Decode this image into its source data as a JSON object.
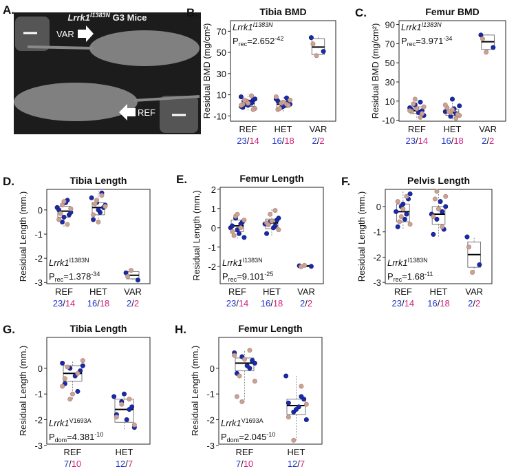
{
  "chart_data": [
    {
      "type": "image",
      "letter": "A.",
      "gene": "Lrrk1",
      "allele": "I1383N",
      "title_rest": " G3 Mice",
      "labels": [
        "VAR",
        "REF"
      ]
    },
    {
      "type": "box",
      "letter": "B.",
      "title": "Tibia BMD",
      "ylabel": "Residual BMD (mg/cm²)",
      "ylim": [
        -15,
        80
      ],
      "yticks": [
        -10,
        10,
        30,
        50,
        70
      ],
      "count_sep": "/",
      "count_colors": [
        "#2233cc",
        "#d0207f"
      ],
      "point_colors": [
        "#1b2aa8",
        "#c8a396"
      ],
      "annotation_corner": "top-left",
      "annotation": {
        "gene": "Lrrk1",
        "allele": "I1383N",
        "p": "P",
        "p_sub": "rec",
        "p_eq": "=2.652",
        "p_exp": "-42"
      },
      "groups": [
        {
          "name": "REF",
          "n": [
            23,
            14
          ],
          "whisker_low": -6,
          "q1": -1,
          "median": 2,
          "q3": 5,
          "whisker_high": 11,
          "points": [
            [
              8,
              5,
              3,
              1,
              -2,
              6,
              2,
              0,
              4,
              -1
            ],
            [
              4,
              1,
              -3,
              9,
              2,
              5,
              0,
              -4
            ]
          ]
        },
        {
          "name": "HET",
          "n": [
            16,
            18
          ],
          "whisker_low": -6,
          "q1": -2,
          "median": 1,
          "q3": 4,
          "whisker_high": 9,
          "points": [
            [
              6,
              3,
              0,
              -2,
              4,
              1,
              7,
              -1
            ],
            [
              2,
              -4,
              5,
              1,
              3,
              -3,
              8,
              0
            ]
          ]
        },
        {
          "name": "VAR",
          "n": [
            2,
            2
          ],
          "whisker_low": 46,
          "q1": 48,
          "median": 55,
          "q3": 63,
          "whisker_high": 66,
          "points": [
            [
              64,
              51
            ],
            [
              47,
              58
            ]
          ]
        }
      ]
    },
    {
      "type": "box",
      "letter": "C.",
      "title": "Femur BMD",
      "ylabel": "Residual BMD (mg/cm²)",
      "ylim": [
        -11,
        94
      ],
      "yticks": [
        -10,
        10,
        30,
        50,
        70,
        90
      ],
      "count_sep": "/",
      "count_colors": [
        "#2233cc",
        "#d0207f"
      ],
      "point_colors": [
        "#1b2aa8",
        "#c8a396"
      ],
      "annotation_corner": "top-left",
      "annotation": {
        "gene": "Lrrk1",
        "allele": "I1383N",
        "p": "P",
        "p_sub": "rec",
        "p_eq": "=3.971",
        "p_exp": "-34"
      },
      "groups": [
        {
          "name": "REF",
          "n": [
            23,
            14
          ],
          "whisker_low": -9,
          "q1": -3,
          "median": 0,
          "q3": 4,
          "whisker_high": 13,
          "points": [
            [
              3,
              0,
              -2,
              6,
              1,
              -5,
              9,
              2
            ],
            [
              12,
              -1,
              4,
              -7,
              2,
              7,
              0,
              -3
            ]
          ]
        },
        {
          "name": "HET",
          "n": [
            16,
            18
          ],
          "whisker_low": -9,
          "q1": -5,
          "median": -2,
          "q3": 1,
          "whisker_high": 12,
          "points": [
            [
              -1,
              -4,
              2,
              -6,
              0,
              5,
              -3,
              12
            ],
            [
              -2,
              3,
              -5,
              -8,
              1,
              -1,
              6,
              -4
            ]
          ]
        },
        {
          "name": "VAR",
          "n": [
            2,
            2
          ],
          "whisker_low": 60,
          "q1": 64,
          "median": 72,
          "q3": 79,
          "whisker_high": 80,
          "points": [
            [
              79,
              66
            ],
            [
              61,
              75
            ]
          ]
        }
      ]
    },
    {
      "type": "box",
      "letter": "D.",
      "title": "Tibia Length",
      "ylabel": "Residual Length (mm.)",
      "ylim": [
        -3.05,
        0.85
      ],
      "yticks": [
        0,
        -1,
        -2,
        -3
      ],
      "count_sep": "/",
      "count_colors": [
        "#2233cc",
        "#d0207f"
      ],
      "point_colors": [
        "#1b2aa8",
        "#c8a396"
      ],
      "annotation_corner": "bottom-left",
      "annotation": {
        "gene": "Lrrk1",
        "allele": "I1383N",
        "p": "P",
        "p_sub": "rec",
        "p_eq": "=1.378",
        "p_exp": "-34"
      },
      "groups": [
        {
          "name": "REF",
          "n": [
            23,
            14
          ],
          "whisker_low": -0.7,
          "q1": -0.3,
          "median": -0.05,
          "q3": 0.15,
          "whisker_high": 0.5,
          "points": [
            [
              0.1,
              -0.2,
              0.3,
              -0.5,
              0.0,
              -0.1,
              0.4,
              -0.3
            ],
            [
              0.2,
              -0.4,
              0.05,
              -0.6,
              0.35,
              -0.15
            ]
          ]
        },
        {
          "name": "HET",
          "n": [
            16,
            18
          ],
          "whisker_low": -0.6,
          "q1": -0.2,
          "median": 0.1,
          "q3": 0.3,
          "whisker_high": 0.8,
          "points": [
            [
              0.5,
              0.1,
              -0.1,
              0.3,
              -0.4,
              0.2,
              0.7,
              0.0
            ],
            [
              0.4,
              -0.2,
              0.15,
              0.6,
              -0.5,
              0.25
            ]
          ]
        },
        {
          "name": "VAR",
          "n": [
            2,
            2
          ],
          "whisker_low": -2.95,
          "q1": -2.85,
          "median": -2.7,
          "q3": -2.55,
          "whisker_high": -2.5,
          "points": [
            [
              -2.6,
              -2.9
            ],
            [
              -2.5,
              -2.75
            ]
          ]
        }
      ]
    },
    {
      "type": "box",
      "letter": "E.",
      "title": "Femur Length",
      "ylabel": "Residual Length (mm.)",
      "ylim": [
        -2.9,
        2.1
      ],
      "yticks": [
        2,
        1,
        0,
        -1,
        -2
      ],
      "count_sep": "/",
      "count_colors": [
        "#2233cc",
        "#d0207f"
      ],
      "point_colors": [
        "#1b2aa8",
        "#c8a396"
      ],
      "annotation_corner": "bottom-left",
      "annotation": {
        "gene": "Lrrk1",
        "allele": "I1383N",
        "p": "P",
        "p_sub": "rec",
        "p_eq": "=9.101",
        "p_exp": "-25"
      },
      "groups": [
        {
          "name": "REF",
          "n": [
            23,
            14
          ],
          "whisker_low": -0.6,
          "q1": -0.2,
          "median": 0.1,
          "q3": 0.4,
          "whisker_high": 0.8,
          "points": [
            [
              0.0,
              0.3,
              -0.3,
              0.5,
              0.1,
              -0.5,
              0.2,
              -0.1
            ],
            [
              0.6,
              -0.2,
              0.4,
              0.0,
              0.7,
              -0.4
            ]
          ]
        },
        {
          "name": "HET",
          "n": [
            16,
            18
          ],
          "whisker_low": -0.4,
          "q1": -0.05,
          "median": 0.25,
          "q3": 0.45,
          "whisker_high": 1.0,
          "points": [
            [
              0.2,
              0.4,
              0.0,
              0.3,
              -0.3,
              0.5,
              0.1
            ],
            [
              0.7,
              0.25,
              -0.1,
              0.9,
              0.35,
              0.15
            ]
          ]
        },
        {
          "name": "VAR",
          "n": [
            2,
            2
          ],
          "whisker_low": -2.05,
          "q1": -2.02,
          "median": -1.98,
          "q3": -1.95,
          "whisker_high": -1.93,
          "points": [
            [
              -1.97,
              -2.0
            ],
            [
              -1.95,
              -2.02
            ]
          ]
        }
      ]
    },
    {
      "type": "box",
      "letter": "F.",
      "title": "Pelvis Length",
      "ylabel": "Residual Length (mm.)",
      "ylim": [
        -3.05,
        0.68
      ],
      "yticks": [
        0,
        -1,
        -2,
        -3
      ],
      "count_sep": "/",
      "count_colors": [
        "#2233cc",
        "#d0207f"
      ],
      "point_colors": [
        "#1b2aa8",
        "#c8a396"
      ],
      "annotation_corner": "bottom-left",
      "annotation": {
        "gene": "Lrrk1",
        "allele": "I1383N",
        "p": "P",
        "p_sub": "rec",
        "p_eq": "=1.68",
        "p_exp": "-11"
      },
      "groups": [
        {
          "name": "REF",
          "n": [
            23,
            14
          ],
          "whisker_low": -0.9,
          "q1": -0.6,
          "median": -0.2,
          "q3": 0.1,
          "whisker_high": 0.6,
          "points": [
            [
              -0.2,
              0.3,
              -0.5,
              0.0,
              -0.8,
              0.5,
              -0.3,
              0.1
            ],
            [
              -0.4,
              0.2,
              -0.7,
              0.4,
              -0.1,
              -0.6
            ]
          ]
        },
        {
          "name": "HET",
          "n": [
            16,
            18
          ],
          "whisker_low": -1.2,
          "q1": -0.7,
          "median": -0.3,
          "q3": 0.0,
          "whisker_high": 0.7,
          "points": [
            [
              -0.3,
              -0.9,
              0.2,
              -0.5,
              -1.1,
              0.0,
              -0.2
            ],
            [
              0.6,
              -0.4,
              0.4,
              -0.8,
              -0.1,
              0.3
            ]
          ]
        },
        {
          "name": "VAR",
          "n": [
            2,
            2
          ],
          "whisker_low": -2.6,
          "q1": -2.4,
          "median": -1.9,
          "q3": -1.4,
          "whisker_high": -1.2,
          "points": [
            [
              -1.2,
              -2.3
            ],
            [
              -2.6,
              -1.6
            ]
          ]
        }
      ]
    },
    {
      "type": "box",
      "letter": "G.",
      "title": "Tibia Length",
      "ylabel": "Residual Length (mm.)",
      "ylim": [
        -2.95,
        1.2
      ],
      "yticks": [
        0,
        -1,
        -2,
        -3
      ],
      "count_sep": "/",
      "count_colors": [
        "#2233cc",
        "#d0207f"
      ],
      "point_colors": [
        "#1b2aa8",
        "#c8a396"
      ],
      "annotation_corner": "bottom-left",
      "annotation": {
        "gene": "Lrrk1",
        "allele": "V1693A",
        "p": "P",
        "p_sub": "dom",
        "p_eq": "=4.381",
        "p_exp": "-10"
      },
      "groups": [
        {
          "name": "REF",
          "n": [
            7,
            10
          ],
          "whisker_low": -1.2,
          "q1": -0.5,
          "median": -0.2,
          "q3": 0.1,
          "whisker_high": 0.3,
          "points": [
            [
              0.2,
              -0.1,
              -0.3,
              0.0,
              -0.6,
              0.1,
              -0.9
            ],
            [
              -1.2,
              -0.4,
              0.3,
              -0.2,
              -1.0,
              0.05,
              -0.7
            ]
          ]
        },
        {
          "name": "HET",
          "n": [
            12,
            7
          ],
          "whisker_low": -2.4,
          "q1": -2.1,
          "median": -1.6,
          "q3": -1.2,
          "whisker_high": -1.0,
          "points": [
            [
              -1.1,
              -1.5,
              -2.0,
              -1.3,
              -1.8,
              -2.3,
              -1.6,
              -1.0
            ],
            [
              -1.4,
              -1.9,
              -2.2,
              -1.2
            ]
          ]
        }
      ]
    },
    {
      "type": "box",
      "letter": "H.",
      "title": "Femur Length",
      "ylabel": "Residual Length (mm.)",
      "ylim": [
        -2.95,
        1.2
      ],
      "yticks": [
        0,
        -1,
        -2,
        -3
      ],
      "count_sep": "/",
      "count_colors": [
        "#2233cc",
        "#d0207f"
      ],
      "point_colors": [
        "#1b2aa8",
        "#c8a396"
      ],
      "annotation_corner": "bottom-left",
      "annotation": {
        "gene": "Lrrk1",
        "allele": "V1693A",
        "p": "P",
        "p_sub": "dom",
        "p_eq": "=2.045",
        "p_exp": "-10"
      },
      "groups": [
        {
          "name": "REF",
          "n": [
            7,
            10
          ],
          "whisker_low": -1.3,
          "q1": -0.1,
          "median": 0.2,
          "q3": 0.4,
          "whisker_high": 0.7,
          "points": [
            [
              0.6,
              0.3,
              0.1,
              0.45,
              -0.2,
              0.2,
              0.0
            ],
            [
              -1.3,
              -1.1,
              -0.5,
              0.7,
              0.35,
              -0.3,
              0.5
            ]
          ]
        },
        {
          "name": "HET",
          "n": [
            12,
            7
          ],
          "whisker_low": -2.8,
          "q1": -1.8,
          "median": -1.45,
          "q3": -1.2,
          "whisker_high": -0.3,
          "points": [
            [
              -0.3,
              -1.2,
              -1.5,
              -1.7,
              -1.35,
              -2.0,
              -1.1,
              -1.6
            ],
            [
              -2.8,
              -1.9,
              -1.4,
              -0.7
            ]
          ]
        }
      ]
    }
  ]
}
